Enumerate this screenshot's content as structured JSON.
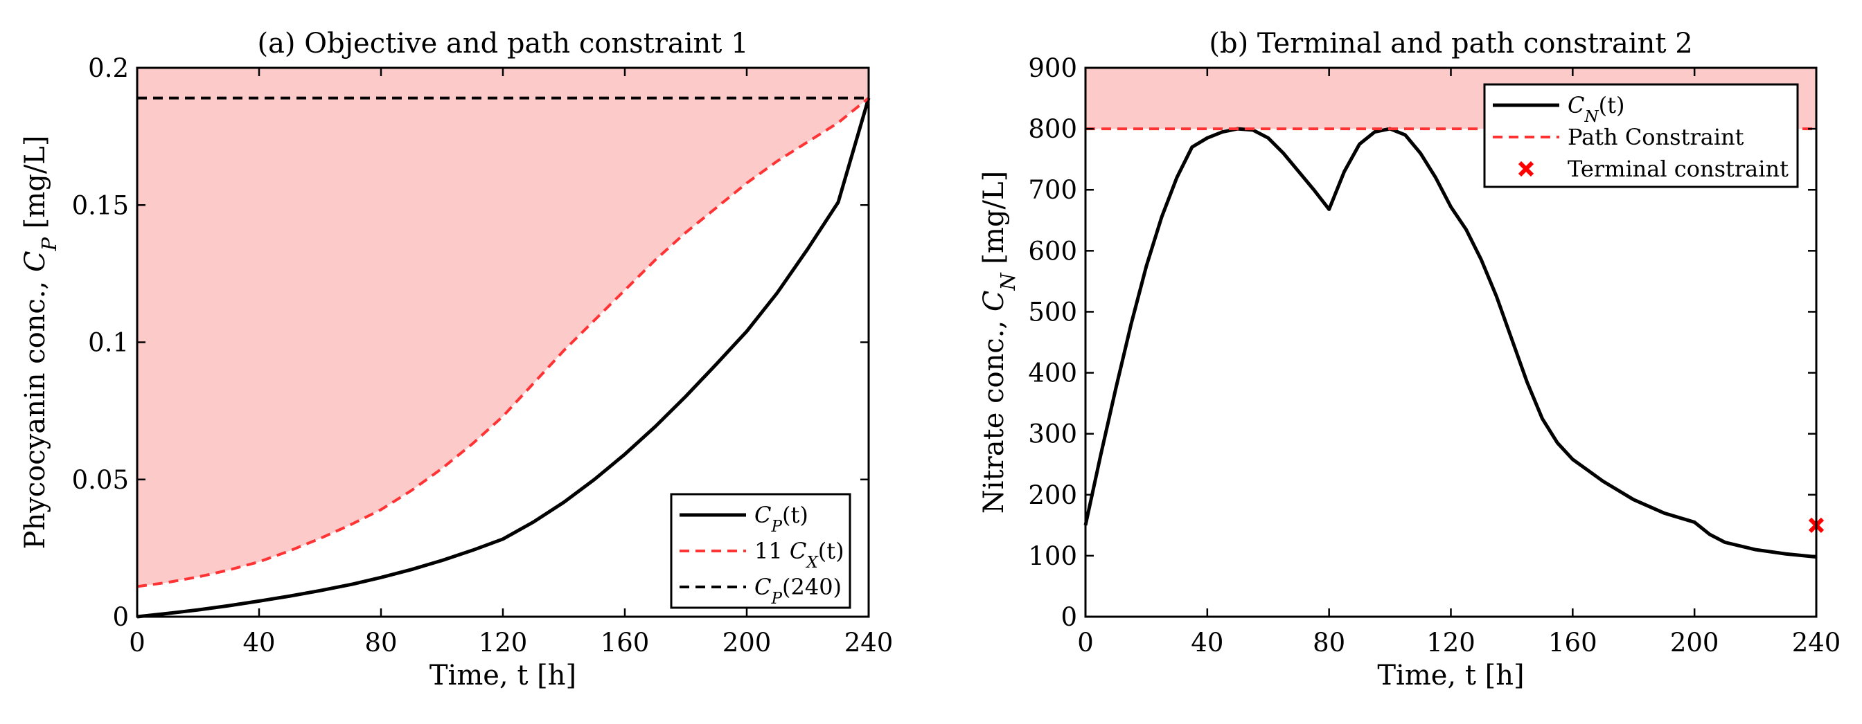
{
  "chart_data": [
    {
      "type": "line",
      "title": "(a) Objective and path constraint 1",
      "xlabel": "Time, t [h]",
      "ylabel": {
        "prefix": "Phycocyanin conc., ",
        "sym": "C",
        "sub": "P",
        "suffix": " [mg/L]"
      },
      "xlim": [
        0,
        240
      ],
      "ylim": [
        0,
        0.2
      ],
      "xticks": [
        0,
        40,
        80,
        120,
        160,
        200,
        240
      ],
      "yticks": [
        0,
        0.05,
        0.1,
        0.15,
        0.2
      ],
      "ytick_labels": [
        "0",
        "0.05",
        "0.1",
        "0.15",
        "0.2"
      ],
      "shaded_region": {
        "color": "#fdcaca",
        "description": "between 11 C_X(t) and upper axis limit"
      },
      "series": [
        {
          "name": "C_P(t)",
          "legend": {
            "coef": "",
            "sym": "C",
            "sub": "P",
            "arg": "(t)"
          },
          "color": "#000000",
          "style": "solid",
          "x": [
            0,
            10,
            20,
            30,
            40,
            50,
            60,
            70,
            80,
            90,
            100,
            110,
            120,
            130,
            140,
            150,
            160,
            170,
            180,
            190,
            200,
            210,
            220,
            230,
            240
          ],
          "y": [
            0,
            0.0012,
            0.0025,
            0.004,
            0.0057,
            0.0075,
            0.0095,
            0.0117,
            0.0143,
            0.0172,
            0.0205,
            0.0242,
            0.0283,
            0.0345,
            0.0417,
            0.05,
            0.0592,
            0.0693,
            0.0803,
            0.092,
            0.104,
            0.118,
            0.134,
            0.151,
            0.189
          ]
        },
        {
          "name": "11 C_X(t)",
          "legend": {
            "coef": "11 ",
            "sym": "C",
            "sub": "X",
            "arg": "(t)"
          },
          "color": "#ff3333",
          "style": "dashed",
          "x": [
            0,
            10,
            20,
            30,
            40,
            50,
            60,
            70,
            80,
            90,
            100,
            110,
            120,
            130,
            140,
            150,
            160,
            170,
            180,
            190,
            200,
            210,
            220,
            230,
            240
          ],
          "y": [
            0.011,
            0.0125,
            0.0145,
            0.017,
            0.02,
            0.024,
            0.0285,
            0.0335,
            0.039,
            0.046,
            0.054,
            0.063,
            0.073,
            0.085,
            0.097,
            0.108,
            0.119,
            0.13,
            0.14,
            0.149,
            0.158,
            0.166,
            0.173,
            0.18,
            0.189
          ]
        },
        {
          "name": "C_P(240)",
          "legend": {
            "coef": "",
            "sym": "C",
            "sub": "P",
            "arg": "(240)"
          },
          "color": "#000000",
          "style": "dashed",
          "x": [
            0,
            240
          ],
          "y": [
            0.189,
            0.189
          ]
        }
      ],
      "legend_position": "bottom-right"
    },
    {
      "type": "line",
      "title": "(b) Terminal and path constraint 2",
      "xlabel": "Time, t [h]",
      "ylabel": {
        "prefix": "Nitrate conc., ",
        "sym": "C",
        "sub": "N",
        "suffix": " [mg/L]"
      },
      "xlim": [
        0,
        240
      ],
      "ylim": [
        0,
        900
      ],
      "xticks": [
        0,
        40,
        80,
        120,
        160,
        200,
        240
      ],
      "yticks": [
        0,
        100,
        200,
        300,
        400,
        500,
        600,
        700,
        800,
        900
      ],
      "ytick_labels": [
        "0",
        "100",
        "200",
        "300",
        "400",
        "500",
        "600",
        "700",
        "800",
        "900"
      ],
      "shaded_region": {
        "color": "#fdcaca",
        "description": "above path constraint 800 mg/L"
      },
      "series": [
        {
          "name": "C_N(t)",
          "legend": {
            "sym": "C",
            "sub": "N",
            "arg": "(t)"
          },
          "color": "#000000",
          "style": "solid",
          "x": [
            0,
            5,
            10,
            15,
            20,
            25,
            30,
            35,
            40,
            45,
            50,
            55,
            60,
            65,
            70,
            75,
            80,
            85,
            90,
            95,
            100,
            105,
            110,
            115,
            120,
            125,
            130,
            135,
            140,
            145,
            150,
            155,
            160,
            170,
            180,
            190,
            200,
            205,
            210,
            220,
            230,
            240
          ],
          "y": [
            150,
            265,
            375,
            480,
            575,
            655,
            720,
            770,
            785,
            795,
            800,
            798,
            785,
            760,
            730,
            700,
            668,
            730,
            775,
            795,
            800,
            790,
            760,
            720,
            672,
            635,
            585,
            525,
            455,
            385,
            325,
            285,
            258,
            222,
            192,
            170,
            155,
            135,
            122,
            110,
            103,
            98
          ]
        },
        {
          "name": "Path Constraint",
          "legend": {
            "text": "Path Constraint"
          },
          "color": "#ff3333",
          "style": "dashed",
          "x": [
            0,
            240
          ],
          "y": [
            800,
            800
          ]
        },
        {
          "name": "Terminal constraint",
          "legend": {
            "text": "Terminal constraint"
          },
          "color": "#ff0000",
          "style": "marker-x",
          "x": [
            240
          ],
          "y": [
            150
          ]
        }
      ],
      "legend_position": "top-right"
    }
  ]
}
